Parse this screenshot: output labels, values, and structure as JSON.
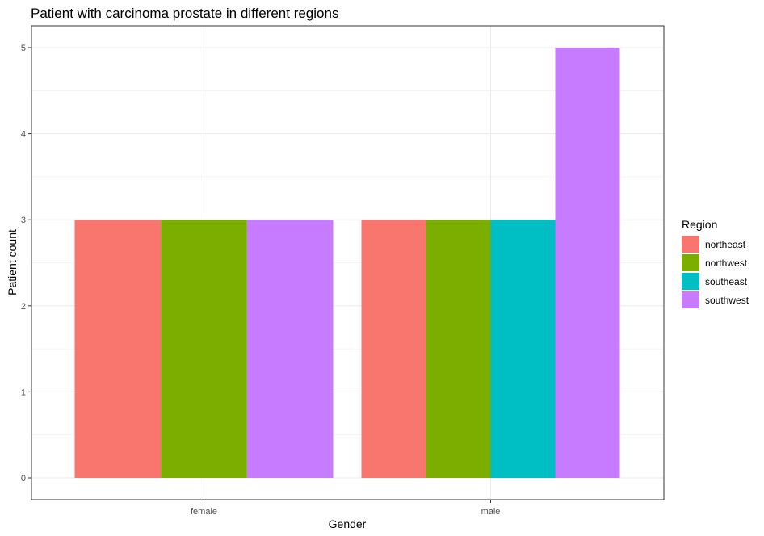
{
  "chart_data": {
    "type": "bar",
    "title": "Patient with carcinoma prostate in different regions",
    "xlabel": "Gender",
    "ylabel": "Patient count",
    "categories": [
      "female",
      "male"
    ],
    "ylim": [
      0,
      5
    ],
    "y_ticks": [
      0,
      1,
      2,
      3,
      4,
      5
    ],
    "grid": true,
    "legend": {
      "title": "Region",
      "placement": "right"
    },
    "series": [
      {
        "name": "northeast",
        "color": "#F8766D",
        "values": [
          3,
          3
        ]
      },
      {
        "name": "northwest",
        "color": "#7CAE00",
        "values": [
          3,
          3
        ]
      },
      {
        "name": "southeast",
        "color": "#00BFC4",
        "values": [
          null,
          3
        ]
      },
      {
        "name": "southwest",
        "color": "#C77CFF",
        "values": [
          3,
          5
        ]
      }
    ]
  }
}
